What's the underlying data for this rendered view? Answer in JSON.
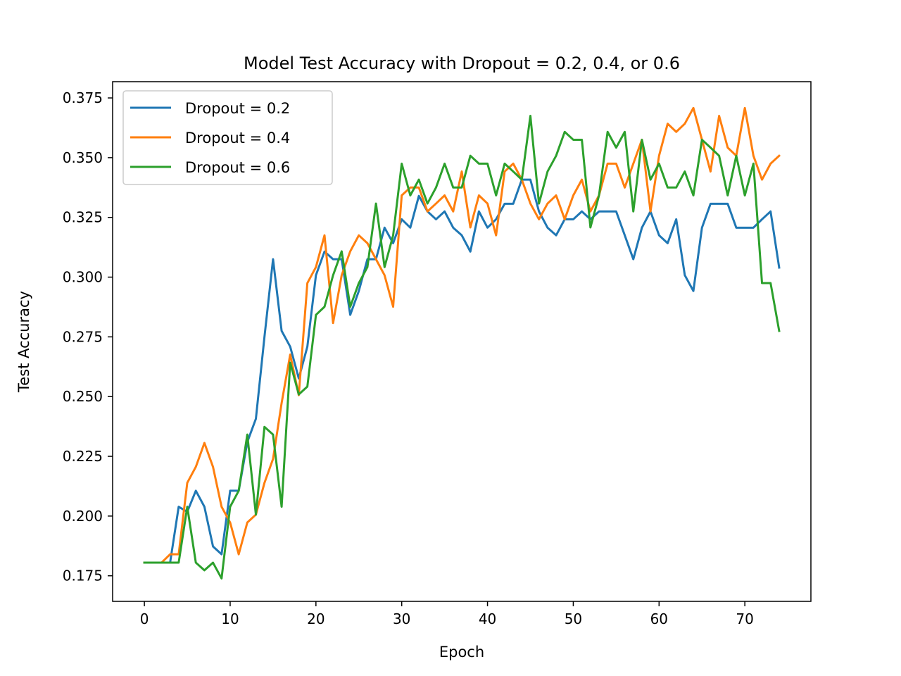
{
  "chart_data": {
    "type": "line",
    "title": "Model Test Accuracy with Dropout = 0.2, 0.4, or 0.6",
    "xlabel": "Epoch",
    "ylabel": "Test Accuracy",
    "xlim": [
      -3.7,
      77.7
    ],
    "ylim": [
      0.1643,
      0.3818
    ],
    "xticks": [
      0,
      10,
      20,
      30,
      40,
      50,
      60,
      70
    ],
    "yticks": [
      0.175,
      0.2,
      0.225,
      0.25,
      0.275,
      0.3,
      0.325,
      0.35,
      0.375
    ],
    "ytick_labels": [
      "0.175",
      "0.200",
      "0.225",
      "0.250",
      "0.275",
      "0.300",
      "0.325",
      "0.350",
      "0.375"
    ],
    "grid": false,
    "legend_position": "upper left",
    "x": [
      0,
      1,
      2,
      3,
      4,
      5,
      6,
      7,
      8,
      9,
      10,
      11,
      12,
      13,
      14,
      15,
      16,
      17,
      18,
      19,
      20,
      21,
      22,
      23,
      24,
      25,
      26,
      27,
      28,
      29,
      30,
      31,
      32,
      33,
      34,
      35,
      36,
      37,
      38,
      39,
      40,
      41,
      42,
      43,
      44,
      45,
      46,
      47,
      48,
      49,
      50,
      51,
      52,
      53,
      54,
      55,
      56,
      57,
      58,
      59,
      60,
      61,
      62,
      63,
      64,
      65,
      66,
      67,
      68,
      69,
      70,
      71,
      72,
      73,
      74
    ],
    "series": [
      {
        "name": "Dropout = 0.2",
        "color": "#1f77b4",
        "values": [
          0.1805,
          0.1805,
          0.1805,
          0.1805,
          0.2039,
          0.2018,
          0.2106,
          0.2039,
          0.1873,
          0.184,
          0.2106,
          0.2106,
          0.231,
          0.2407,
          0.275,
          0.3075,
          0.2775,
          0.2709,
          0.2576,
          0.2709,
          0.3008,
          0.3107,
          0.3075,
          0.3075,
          0.2842,
          0.2942,
          0.3075,
          0.3075,
          0.3207,
          0.3142,
          0.3242,
          0.3207,
          0.334,
          0.3275,
          0.3242,
          0.3275,
          0.3207,
          0.3175,
          0.3107,
          0.3275,
          0.3207,
          0.3242,
          0.3307,
          0.3307,
          0.3408,
          0.3408,
          0.3275,
          0.3207,
          0.3175,
          0.3242,
          0.3242,
          0.3275,
          0.3242,
          0.3275,
          0.3275,
          0.3275,
          0.3175,
          0.3075,
          0.3207,
          0.3275,
          0.3175,
          0.3142,
          0.3242,
          0.3008,
          0.2942,
          0.3207,
          0.3307,
          0.3307,
          0.3307,
          0.3207,
          0.3207,
          0.3207,
          0.3242,
          0.3275,
          0.304
        ]
      },
      {
        "name": "Dropout = 0.4",
        "color": "#ff7f0e",
        "values": [
          0.1805,
          0.1805,
          0.1805,
          0.184,
          0.184,
          0.2139,
          0.2206,
          0.2306,
          0.2206,
          0.2039,
          0.1973,
          0.184,
          0.1973,
          0.2006,
          0.2139,
          0.2239,
          0.2473,
          0.2676,
          0.2506,
          0.2975,
          0.3042,
          0.3175,
          0.2808,
          0.3008,
          0.3108,
          0.3175,
          0.3142,
          0.3075,
          0.3008,
          0.2876,
          0.3342,
          0.3375,
          0.3375,
          0.3275,
          0.3308,
          0.3342,
          0.3275,
          0.3442,
          0.3208,
          0.3342,
          0.3308,
          0.3175,
          0.3442,
          0.3475,
          0.3408,
          0.3308,
          0.3242,
          0.3308,
          0.3342,
          0.3242,
          0.3342,
          0.3408,
          0.3275,
          0.3342,
          0.3475,
          0.3475,
          0.3375,
          0.3475,
          0.3575,
          0.3275,
          0.3508,
          0.3642,
          0.3608,
          0.3642,
          0.3708,
          0.3575,
          0.3442,
          0.3675,
          0.3542,
          0.3508,
          0.3708,
          0.3508,
          0.3408,
          0.3475,
          0.3508
        ]
      },
      {
        "name": "Dropout = 0.6",
        "color": "#2ca02c",
        "values": [
          0.1805,
          0.1805,
          0.1805,
          0.1805,
          0.1805,
          0.2039,
          0.1805,
          0.1773,
          0.1805,
          0.1739,
          0.2039,
          0.2106,
          0.2341,
          0.2006,
          0.2373,
          0.2341,
          0.2039,
          0.2642,
          0.2509,
          0.2542,
          0.2842,
          0.2876,
          0.3008,
          0.3108,
          0.2876,
          0.2975,
          0.3042,
          0.3308,
          0.3042,
          0.3175,
          0.3475,
          0.3342,
          0.3408,
          0.3308,
          0.3375,
          0.3475,
          0.3375,
          0.3375,
          0.3508,
          0.3475,
          0.3475,
          0.3342,
          0.3475,
          0.3442,
          0.3408,
          0.3675,
          0.3308,
          0.3442,
          0.3508,
          0.3608,
          0.3575,
          0.3575,
          0.3208,
          0.3342,
          0.3608,
          0.3542,
          0.3608,
          0.3275,
          0.3575,
          0.3408,
          0.3475,
          0.3375,
          0.3375,
          0.3442,
          0.3342,
          0.3575,
          0.3542,
          0.3508,
          0.3342,
          0.3508,
          0.3342,
          0.3475,
          0.2975,
          0.2975,
          0.2775
        ]
      }
    ]
  }
}
